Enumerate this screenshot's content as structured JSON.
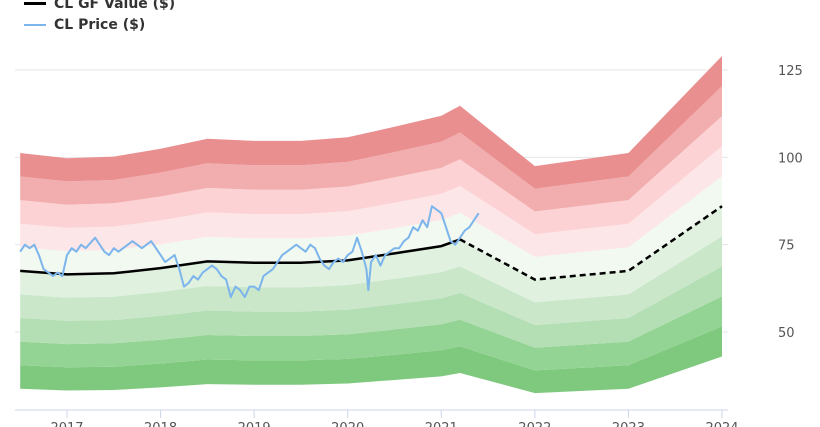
{
  "chart_data": {
    "type": "area",
    "title": "",
    "xlabel": "",
    "ylabel": "",
    "legend_position": "top-left",
    "x_range": [
      2016.5,
      2024.05
    ],
    "ylim": [
      30,
      130
    ],
    "y_ticks": [
      50,
      75,
      100,
      125
    ],
    "x_ticks": [
      2017,
      2018,
      2019,
      2020,
      2021,
      2022,
      2023,
      2024
    ],
    "x_tick_labels": [
      "2017",
      "2018",
      "2019",
      "2020",
      "2021",
      "2022",
      "2023",
      "2024"
    ],
    "legend": [
      {
        "label": "CL GF Value ($)",
        "color": "#000000",
        "style": "solid"
      },
      {
        "label": "CL Price ($)",
        "color": "#7cb5ec",
        "style": "solid"
      }
    ],
    "gf_value": {
      "name": "CL GF Value ($)",
      "x": [
        2016.5,
        2017.0,
        2017.5,
        2018.0,
        2018.5,
        2019.0,
        2019.5,
        2020.0,
        2020.5,
        2021.0,
        2021.2
      ],
      "y": [
        67.5,
        66.5,
        66.8,
        68.3,
        70.2,
        69.8,
        69.8,
        70.5,
        72.5,
        74.6,
        76.5
      ]
    },
    "gf_value_projection": {
      "x": [
        2021.2,
        2022.0,
        2023.0,
        2024.0
      ],
      "y": [
        76.5,
        65.0,
        67.5,
        86.0
      ],
      "style": "dashed"
    },
    "bands": {
      "x": [
        2016.5,
        2017.0,
        2017.5,
        2018.0,
        2018.5,
        2019.0,
        2019.5,
        2020.0,
        2020.5,
        2021.0,
        2021.2,
        2022.0,
        2023.0,
        2024.0
      ],
      "gf_value": [
        67.5,
        66.5,
        66.8,
        68.3,
        70.2,
        69.8,
        69.8,
        70.5,
        72.5,
        74.6,
        76.5,
        65.0,
        67.5,
        86.0
      ],
      "multipliers": [
        0.5,
        0.6,
        0.7,
        0.8,
        0.9,
        1.0,
        1.1,
        1.2,
        1.3,
        1.4,
        1.5
      ],
      "colors": [
        "#7fc97f",
        "#93d393",
        "#b4deb4",
        "#cae7ca",
        "#e0f1e0",
        "#f2f9f0",
        "#fde6e7",
        "#fdd2d5",
        "#f2aeae",
        "#ea8f90",
        "#f07575"
      ]
    },
    "price": {
      "name": "CL Price ($)",
      "x": [
        2016.5,
        2016.55,
        2016.6,
        2016.65,
        2016.7,
        2016.75,
        2016.8,
        2016.85,
        2016.9,
        2016.95,
        2017.0,
        2017.05,
        2017.1,
        2017.15,
        2017.2,
        2017.3,
        2017.4,
        2017.45,
        2017.5,
        2017.55,
        2017.6,
        2017.7,
        2017.8,
        2017.85,
        2017.9,
        2018.0,
        2018.05,
        2018.1,
        2018.15,
        2018.2,
        2018.25,
        2018.3,
        2018.35,
        2018.4,
        2018.45,
        2018.5,
        2018.55,
        2018.6,
        2018.65,
        2018.7,
        2018.75,
        2018.8,
        2018.85,
        2018.9,
        2018.95,
        2019.0,
        2019.05,
        2019.1,
        2019.15,
        2019.2,
        2019.3,
        2019.35,
        2019.4,
        2019.45,
        2019.5,
        2019.55,
        2019.6,
        2019.65,
        2019.7,
        2019.75,
        2019.8,
        2019.85,
        2019.9,
        2019.95,
        2020.0,
        2020.05,
        2020.1,
        2020.15,
        2020.2,
        2020.22,
        2020.25,
        2020.3,
        2020.35,
        2020.4,
        2020.45,
        2020.5,
        2020.55,
        2020.6,
        2020.65,
        2020.7,
        2020.75,
        2020.8,
        2020.85,
        2020.9,
        2020.95,
        2021.0,
        2021.05,
        2021.1,
        2021.15,
        2021.2,
        2021.25,
        2021.3,
        2021.35,
        2021.4
      ],
      "y": [
        73,
        75,
        74,
        75,
        72,
        68,
        67,
        66,
        67,
        66,
        72,
        74,
        73,
        75,
        74,
        77,
        73,
        72,
        74,
        73,
        74,
        76,
        74,
        75,
        76,
        72,
        70,
        71,
        72,
        68,
        63,
        64,
        66,
        65,
        67,
        68,
        69,
        68,
        66,
        65,
        60,
        63,
        62,
        60,
        63,
        63,
        62,
        66,
        67,
        68,
        72,
        73,
        74,
        75,
        74,
        73,
        75,
        74,
        71,
        69,
        68,
        70,
        71,
        70,
        72,
        73,
        77,
        73,
        68,
        62,
        70,
        72,
        69,
        72,
        73,
        74,
        74,
        76,
        77,
        80,
        79,
        82,
        80,
        86,
        85,
        84,
        80,
        76,
        75,
        77,
        79,
        80,
        82,
        84
      ]
    }
  }
}
